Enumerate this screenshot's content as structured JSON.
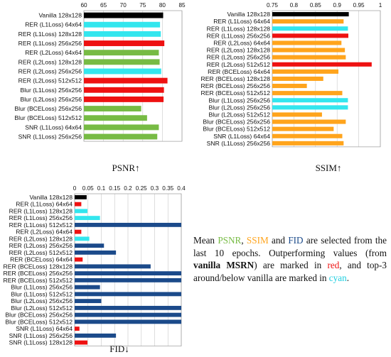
{
  "colors": {
    "black": "#000000",
    "cyan": "#33e6ee",
    "red": "#ee1111",
    "green": "#77bb44",
    "orange": "#ffa41c",
    "navy": "#1b4a8a"
  },
  "caption": {
    "p1": "Mean ",
    "psnr": "PSNR",
    "p2": ", ",
    "ssim": "SSIM",
    "p3": " and ",
    "fid": "FID",
    "p4": " are selected from the last 10 epochs.  Outperforming values (from ",
    "bold": "vanilla MSRN",
    "p5": ") are marked in ",
    "red_word": "red",
    "p6": ", and top-3 around/below vanilla are marked in ",
    "cyan_word": "cyan",
    "p7": "."
  },
  "chart_data": [
    {
      "type": "bar",
      "orientation": "horizontal",
      "title": "PSNR↑",
      "xlim": [
        60,
        85
      ],
      "xticks": [
        "60",
        "65",
        "70",
        "75",
        "80",
        "85"
      ],
      "grid": true,
      "categories": [
        "Vanilla 128x128",
        "RER (L1Loss) 64x64",
        "RER (L1Loss) 128x128",
        "RER (L1Loss) 256x256",
        "RER (L2Loss) 64x64",
        "RER (L2Loss) 128x128",
        "RER (L2Loss) 256x256",
        "RER (L2Loss) 512x512",
        "Blur (L1Loss) 256x256",
        "Blur (L2Loss) 256x256",
        "Blur (BCELoss) 256x256",
        "Blur (BCELoss) 512x512",
        "SNR (L1Loss) 64x64",
        "SNR (L1Loss) 256x256"
      ],
      "values": [
        80.2,
        79.4,
        79.6,
        80.5,
        79.1,
        79.3,
        79.7,
        81.3,
        80.4,
        80.3,
        74.6,
        76.1,
        79.1,
        78.7
      ],
      "colors": [
        "black",
        "cyan",
        "cyan",
        "red",
        "green",
        "green",
        "cyan",
        "red",
        "red",
        "red",
        "green",
        "green",
        "green",
        "green"
      ]
    },
    {
      "type": "bar",
      "orientation": "horizontal",
      "title": "SSIM↑",
      "xlim": [
        0.75,
        1.0
      ],
      "xticks": [
        "0.75",
        "0.8",
        "0.85",
        "0.9",
        "0.95",
        "1"
      ],
      "grid": true,
      "categories": [
        "Vanilla 128x128",
        "RER (L1Loss) 64x64",
        "RER (L1Loss) 128x128",
        "RER (L1Loss) 256x256",
        "RER (L2Loss) 64x64",
        "RER (L2Loss) 128x128",
        "RER (L2Loss) 256x256",
        "RER (L2Loss) 512x512",
        "RER (BCELoss) 64x64",
        "RER (BCELoss) 128x128",
        "RER (BCELoss) 256x256",
        "RER (BCELoss) 512x512",
        "Blur (L1Loss) 256x256",
        "Blur (L2Loss) 256x256",
        "Blur (L2Loss) 512x512",
        "Blur (BCELoss) 256x256",
        "Blur (BCELoss) 512x512",
        "SNR (L1Loss) 64x64",
        "SNR (L1Loss) 256x256"
      ],
      "values": [
        0.927,
        0.915,
        0.925,
        0.926,
        0.91,
        0.918,
        0.92,
        0.98,
        0.903,
        0.868,
        0.83,
        0.912,
        0.925,
        0.925,
        0.865,
        0.92,
        0.892,
        0.912,
        0.915
      ],
      "colors": [
        "black",
        "orange",
        "cyan",
        "red",
        "orange",
        "orange",
        "orange",
        "red",
        "orange",
        "orange",
        "orange",
        "orange",
        "cyan",
        "cyan",
        "orange",
        "orange",
        "orange",
        "orange",
        "orange"
      ]
    },
    {
      "type": "bar",
      "orientation": "horizontal",
      "title": "FID↓",
      "xlim": [
        0,
        0.4
      ],
      "xticks": [
        "0",
        "0.05",
        "0.1",
        "0.15",
        "0.2",
        "0.25",
        "0.3",
        "0.35",
        "0.4"
      ],
      "grid": true,
      "categories": [
        "Vanilla 128x128",
        "RER (L1Loss) 64x64",
        "RER (L1Loss) 128x128",
        "RER (L1Loss) 256x256",
        "RER (L1Loss) 512x512",
        "RER (L2Loss) 64x64",
        "RER (L2Loss) 128x128",
        "RER (L2Loss) 256x256",
        "RER (L2Loss) 512x512",
        "RER (BCELoss) 64x64",
        "RER (BCELoss) 128x128",
        "RER (BCELoss) 256x256",
        "RER (BCELoss) 512x512",
        "Blur (L1Loss) 256x256",
        "Blur (L1Loss) 512x512",
        "Blur (L2Loss) 256x256",
        "Blur (L2Loss) 512x512",
        "Blur (BCELoss) 256x256",
        "Blur (BCELoss) 512x512",
        "SNR (L1Loss) 64x64",
        "SNR (L1Loss) 256x256",
        "SNR (L1Loss) 128x128"
      ],
      "values": [
        0.045,
        0.025,
        0.048,
        0.095,
        0.4,
        0.025,
        0.055,
        0.11,
        0.155,
        0.03,
        0.285,
        0.4,
        0.4,
        0.095,
        0.4,
        0.1,
        0.4,
        0.4,
        0.4,
        0.018,
        0.155,
        0.048
      ],
      "colors": [
        "black",
        "red",
        "cyan",
        "cyan",
        "navy",
        "red",
        "cyan",
        "navy",
        "navy",
        "red",
        "navy",
        "navy",
        "navy",
        "navy",
        "navy",
        "navy",
        "navy",
        "navy",
        "navy",
        "red",
        "navy",
        "red"
      ]
    }
  ]
}
